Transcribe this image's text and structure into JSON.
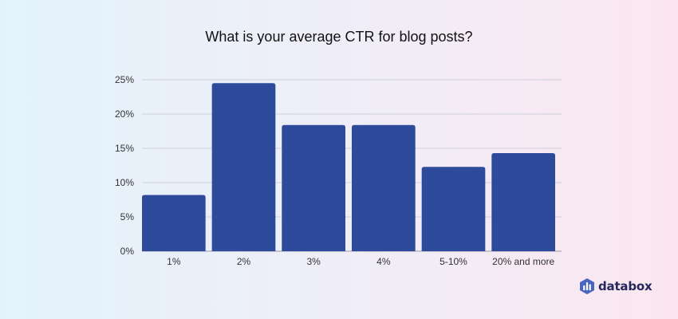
{
  "chart_data": {
    "type": "bar",
    "title": "What is your average CTR for blog posts?",
    "categories": [
      "1%",
      "2%",
      "3%",
      "4%",
      "5-10%",
      "20% and more"
    ],
    "values": [
      8.2,
      24.5,
      18.4,
      18.4,
      12.3,
      14.3
    ],
    "ylim": [
      0,
      25
    ],
    "yticks": [
      "0%",
      "5%",
      "10%",
      "15%",
      "20%",
      "25%"
    ],
    "ytick_values": [
      0,
      5,
      10,
      15,
      20,
      25
    ],
    "xlabel": "",
    "ylabel": "",
    "grid": true,
    "bar_color": "#2e4a9a"
  },
  "brand": {
    "name": "databox",
    "color": "#24285b"
  }
}
